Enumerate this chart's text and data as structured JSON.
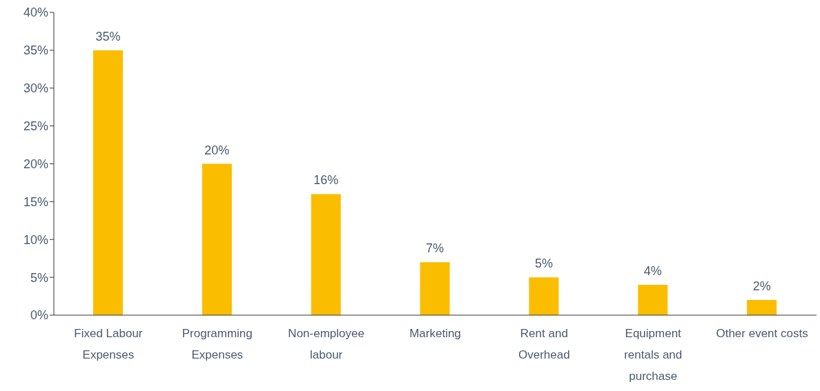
{
  "chart_data": {
    "type": "bar",
    "categories": [
      "Fixed Labour Expenses",
      "Programming Expenses",
      "Non-employee labour",
      "Marketing",
      "Rent and Overhead",
      "Equipment rentals and purchase",
      "Other event costs"
    ],
    "values": [
      35,
      20,
      16,
      7,
      5,
      4,
      2
    ],
    "color": "#fbbd00",
    "value_labels": [
      "35%",
      "20%",
      "16%",
      "7%",
      "5%",
      "4%",
      "2%"
    ],
    "ylim": [
      0,
      40
    ],
    "yticks": [
      {
        "value": 0,
        "label": "0%"
      },
      {
        "value": 5,
        "label": "5%"
      },
      {
        "value": 10,
        "label": "10%"
      },
      {
        "value": 15,
        "label": "15%"
      },
      {
        "value": 20,
        "label": "20%"
      },
      {
        "value": 25,
        "label": "25%"
      },
      {
        "value": 30,
        "label": "30%"
      },
      {
        "value": 35,
        "label": "35%"
      },
      {
        "value": 40,
        "label": "40%"
      }
    ],
    "grid": false,
    "legend": false
  }
}
